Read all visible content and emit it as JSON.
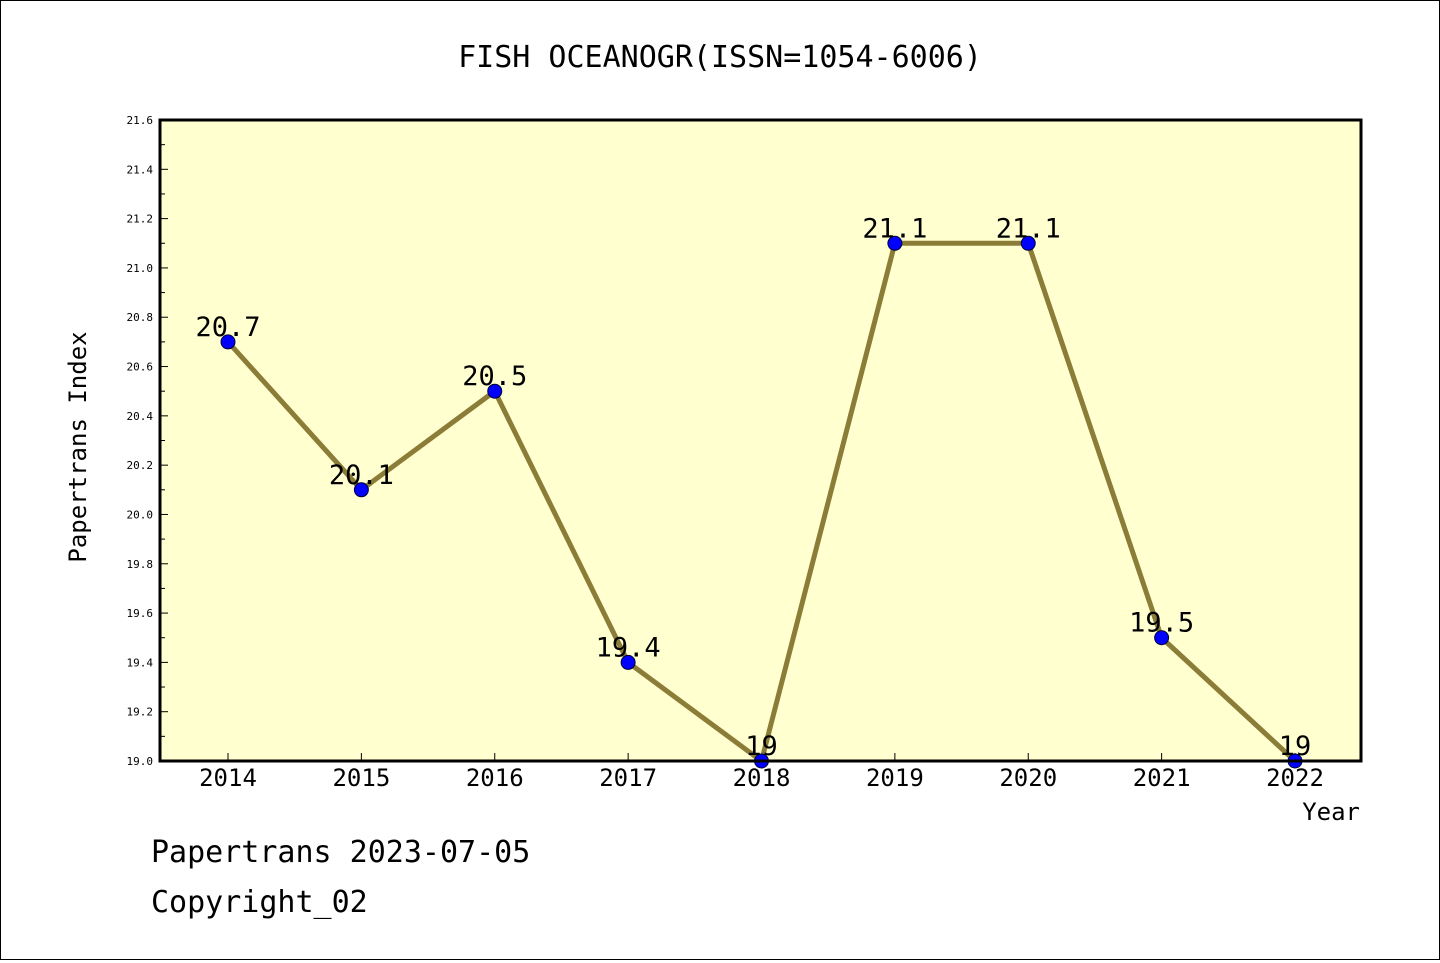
{
  "chart_data": {
    "type": "line",
    "title": "FISH OCEANOGR(ISSN=1054-6006)",
    "xlabel": "Year",
    "ylabel": "Papertrans Index",
    "categories": [
      "2014",
      "2015",
      "2016",
      "2017",
      "2018",
      "2019",
      "2020",
      "2021",
      "2022"
    ],
    "series": [
      {
        "values": [
          20.7,
          20.1,
          20.5,
          19.4,
          19.0,
          21.1,
          21.1,
          19.5,
          19.0
        ],
        "labels": [
          "20.7",
          "20.1",
          "20.5",
          "19.4",
          "19",
          "21.1",
          "21.1",
          "19.5",
          "19"
        ]
      }
    ],
    "ylim": [
      19.0,
      21.6
    ],
    "yticks": [
      "19.0",
      "19.2",
      "19.4",
      "19.6",
      "19.8",
      "20.0",
      "20.2",
      "20.4",
      "20.6",
      "20.8",
      "21.0",
      "21.2",
      "21.4",
      "21.6"
    ],
    "grid": false,
    "colors": {
      "plot_background": "#ffffd0",
      "line": "#8b7d37",
      "marker": "#0000ff"
    }
  },
  "footer": {
    "line1": "Papertrans 2023-07-05",
    "line2": "Copyright_02"
  }
}
